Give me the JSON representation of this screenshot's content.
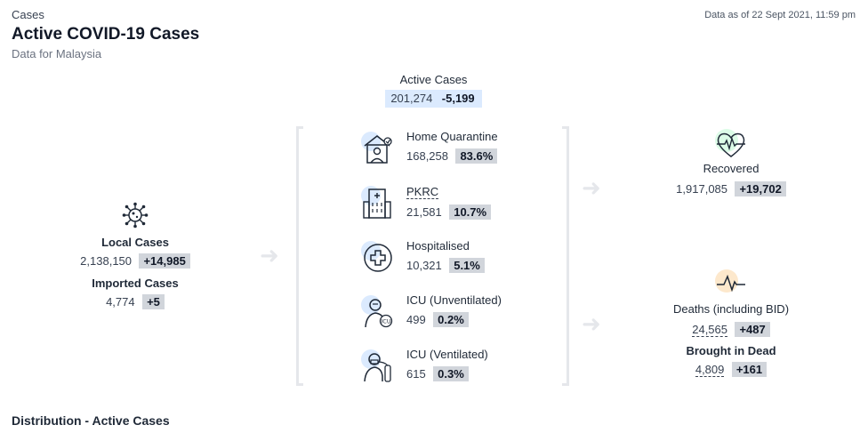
{
  "header": {
    "kicker": "Cases",
    "title": "Active COVID-19 Cases",
    "subtitle": "Data for Malaysia",
    "as_of": "Data as of 22 Sept 2021, 11:59 pm"
  },
  "active": {
    "label": "Active Cases",
    "value": "201,274",
    "delta": "-5,199"
  },
  "local": {
    "label": "Local Cases",
    "value": "2,138,150",
    "delta": "+14,985",
    "icon": "virus-icon"
  },
  "imported": {
    "label": "Imported Cases",
    "value": "4,774",
    "delta": "+5"
  },
  "breakdown": [
    {
      "name": "Home Quarantine",
      "value": "168,258",
      "pct": "83.6%",
      "icon": "home-quarantine-icon"
    },
    {
      "name": "PKRC",
      "value": "21,581",
      "pct": "10.7%",
      "icon": "building-icon"
    },
    {
      "name": "Hospitalised",
      "value": "10,321",
      "pct": "5.1%",
      "icon": "medical-cross-icon"
    },
    {
      "name": "ICU (Unventilated)",
      "value": "499",
      "pct": "0.2%",
      "icon": "icu-patient-icon"
    },
    {
      "name": "ICU (Ventilated)",
      "value": "615",
      "pct": "0.3%",
      "icon": "ventilator-icon"
    }
  ],
  "recovered": {
    "label": "Recovered",
    "value": "1,917,085",
    "delta": "+19,702",
    "icon": "heart-pulse-icon",
    "color": "#22c55e"
  },
  "deaths": {
    "label": "Deaths (including BID)",
    "value": "24,565",
    "delta": "+487",
    "icon": "pulse-line-icon",
    "color": "#f59e0b"
  },
  "bid": {
    "label": "Brought in Dead",
    "value": "4,809",
    "delta": "+161"
  },
  "footer": {
    "section_title": "Distribution - Active Cases"
  }
}
